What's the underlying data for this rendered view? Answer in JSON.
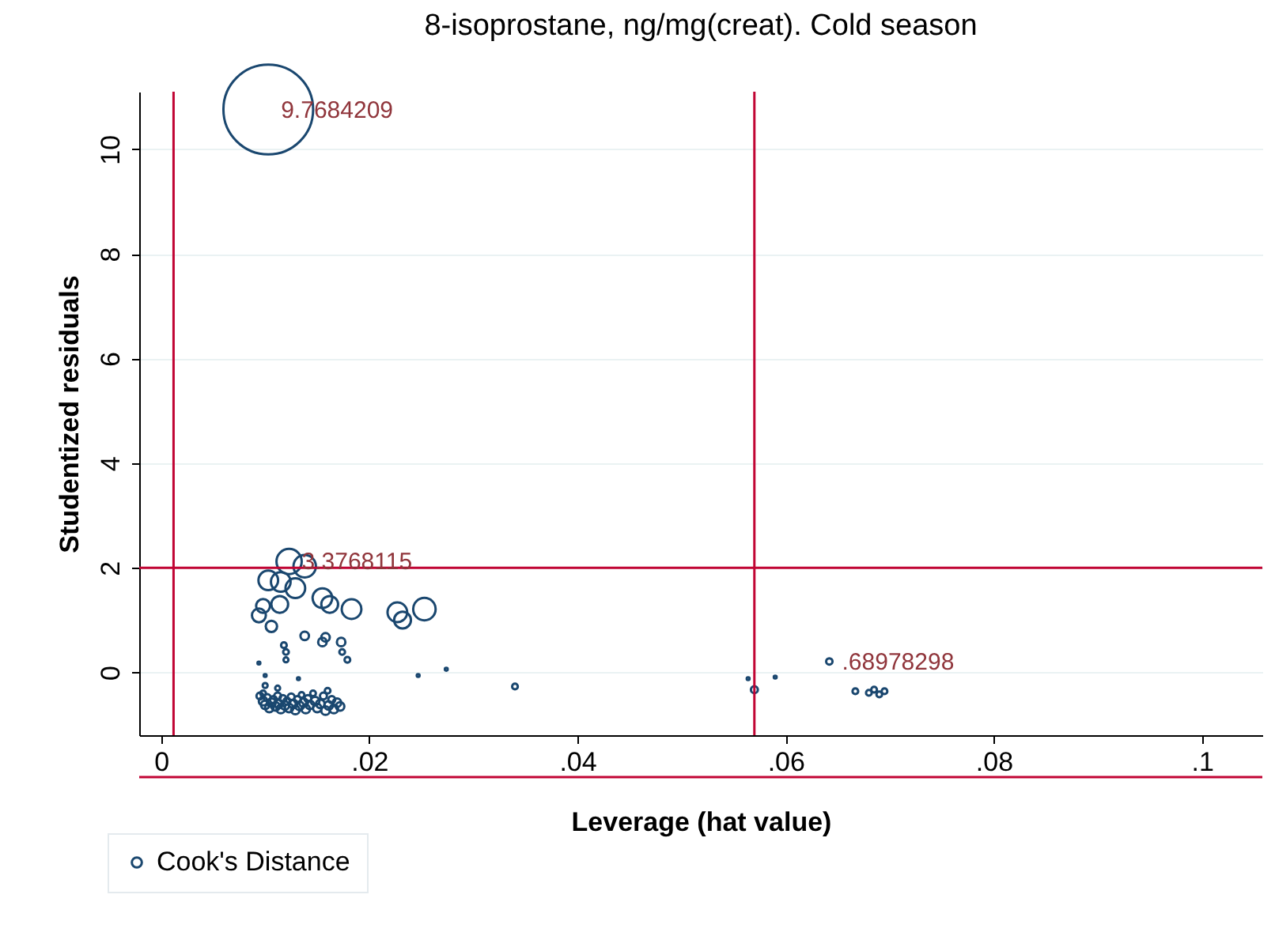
{
  "chart_data": {
    "type": "bubble",
    "title": "8-isoprostane, ng/mg(creat). Cold season",
    "xlabel": "Leverage (hat value)",
    "ylabel": "Studentized residuals",
    "xlim": [
      -0.0021,
      0.1058
    ],
    "ylim": [
      -1.2,
      11.1
    ],
    "xticks": [
      {
        "value": 0,
        "label": "0"
      },
      {
        "value": 0.02,
        "label": ".02"
      },
      {
        "value": 0.04,
        "label": ".04"
      },
      {
        "value": 0.06,
        "label": ".06"
      },
      {
        "value": 0.08,
        "label": ".08"
      },
      {
        "value": 0.1,
        "label": ".1"
      }
    ],
    "yticks": [
      0,
      2,
      4,
      6,
      8,
      10
    ],
    "grid": "y",
    "legend": "bottom",
    "series": [
      {
        "name": "Cook's Distance",
        "color": "#1a476f",
        "x": [
          0.0103,
          0.0123,
          0.0138,
          0.0103,
          0.0115,
          0.0129,
          0.0114,
          0.0098,
          0.0094,
          0.0106,
          0.0155,
          0.0162,
          0.0183,
          0.0227,
          0.0232,
          0.0253,
          0.0138,
          0.0158,
          0.0155,
          0.0118,
          0.0173,
          0.0174,
          0.0179,
          0.012,
          0.012,
          0.0247,
          0.0274,
          0.0094,
          0.01,
          0.0132,
          0.034,
          0.0095,
          0.0098,
          0.01,
          0.0102,
          0.0104,
          0.0106,
          0.0108,
          0.011,
          0.0112,
          0.0113,
          0.0115,
          0.0117,
          0.0119,
          0.0121,
          0.0123,
          0.0125,
          0.0127,
          0.0129,
          0.0131,
          0.0133,
          0.0135,
          0.0137,
          0.0139,
          0.0141,
          0.0143,
          0.0146,
          0.0148,
          0.015,
          0.0153,
          0.0156,
          0.0158,
          0.0161,
          0.0164,
          0.0166,
          0.0169,
          0.0172,
          0.016,
          0.0112,
          0.01,
          0.0098,
          0.0564,
          0.057,
          0.059,
          0.0642,
          0.0667,
          0.068,
          0.0685,
          0.069,
          0.0695
        ],
        "values": [
          10.76,
          2.12,
          2.03,
          1.76,
          1.73,
          1.61,
          1.3,
          1.27,
          1.09,
          0.88,
          1.42,
          1.3,
          1.21,
          1.15,
          1.0,
          1.21,
          0.7,
          0.67,
          0.58,
          0.52,
          0.58,
          0.39,
          0.24,
          0.39,
          0.24,
          -0.06,
          0.06,
          0.18,
          -0.06,
          -0.12,
          -0.27,
          -0.45,
          -0.55,
          -0.62,
          -0.48,
          -0.68,
          -0.58,
          -0.52,
          -0.65,
          -0.45,
          -0.6,
          -0.7,
          -0.5,
          -0.63,
          -0.55,
          -0.68,
          -0.47,
          -0.6,
          -0.72,
          -0.52,
          -0.64,
          -0.43,
          -0.58,
          -0.7,
          -0.5,
          -0.62,
          -0.4,
          -0.55,
          -0.68,
          -0.6,
          -0.45,
          -0.73,
          -0.63,
          -0.52,
          -0.7,
          -0.58,
          -0.65,
          -0.35,
          -0.3,
          -0.25,
          -0.4,
          -0.12,
          -0.33,
          -0.09,
          0.21,
          -0.36,
          -0.39,
          -0.33,
          -0.42,
          -0.36
        ],
        "sizes": [
          1,
          0.079,
          0.0625,
          0.048,
          0.048,
          0.048,
          0.035,
          0.024,
          0.024,
          0.016,
          0.048,
          0.035,
          0.048,
          0.048,
          0.035,
          0.0625,
          0.009,
          0.009,
          0.009,
          0.004,
          0.009,
          0.004,
          0.004,
          0.004,
          0.003,
          0.001,
          0.001,
          0.001,
          0.001,
          0.001,
          0.004,
          0.006,
          0.009,
          0.009,
          0.006,
          0.009,
          0.009,
          0.006,
          0.009,
          0.006,
          0.009,
          0.009,
          0.006,
          0.009,
          0.006,
          0.009,
          0.006,
          0.009,
          0.009,
          0.006,
          0.009,
          0.004,
          0.009,
          0.009,
          0.006,
          0.009,
          0.004,
          0.009,
          0.009,
          0.009,
          0.006,
          0.009,
          0.009,
          0.006,
          0.009,
          0.009,
          0.009,
          0.004,
          0.003,
          0.003,
          0.004,
          0.001,
          0.006,
          0.001,
          0.005,
          0.004,
          0.004,
          0.004,
          0.004,
          0.004
        ]
      }
    ],
    "annotations": [
      {
        "text": "9.7684209",
        "x": 0.0103,
        "y": 10.76
      },
      {
        "text": "3.3768115",
        "x": 0.0123,
        "y": 2.12
      },
      {
        "text": ".68978298",
        "x": 0.0642,
        "y": 0.21
      }
    ],
    "ref_lines": [
      {
        "axis": "x",
        "value": 0.0012,
        "color": "#c10534"
      },
      {
        "axis": "x",
        "value": 0.057,
        "color": "#c10534"
      },
      {
        "axis": "y",
        "value": 2,
        "color": "#c10534"
      },
      {
        "axis": "y",
        "value": -2,
        "color": "#c10534"
      }
    ]
  }
}
